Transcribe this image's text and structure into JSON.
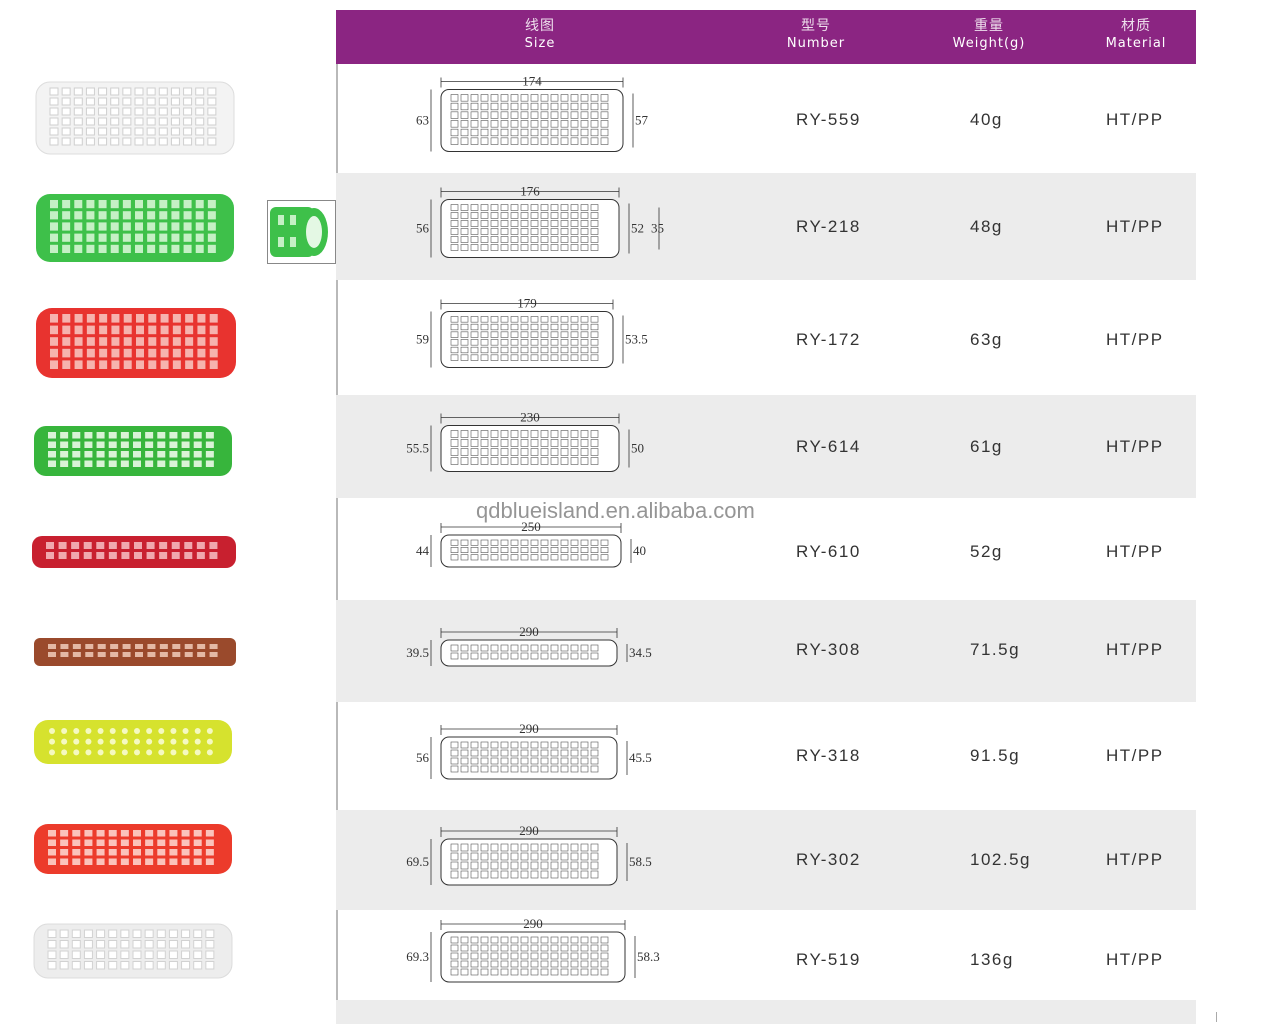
{
  "header": {
    "size_cn": "线图",
    "size_en": "Size",
    "number_cn": "型号",
    "number_en": "Number",
    "weight_cn": "重量",
    "weight_en": "Weight(g)",
    "material_cn": "材质",
    "material_en": "Material",
    "background_color": "#8b2582"
  },
  "watermark": "qdblueisland.en.alibaba.com",
  "rows": [
    {
      "number": "RY-559",
      "weight": "40g",
      "material": "HT/PP",
      "length": "174",
      "left_dia": "63",
      "right_dia": "57",
      "right_dia2": "",
      "color": "#f2f2f2"
    },
    {
      "number": "RY-218",
      "weight": "48g",
      "material": "HT/PP",
      "length": "176",
      "left_dia": "56",
      "right_dia": "52",
      "right_dia2": "35",
      "color": "#3ec04a"
    },
    {
      "number": "RY-172",
      "weight": "63g",
      "material": "HT/PP",
      "length": "179",
      "left_dia": "59",
      "right_dia": "53.5",
      "right_dia2": "",
      "color": "#e8332f"
    },
    {
      "number": "RY-614",
      "weight": "61g",
      "material": "HT/PP",
      "length": "230",
      "left_dia": "55.5",
      "right_dia": "50",
      "right_dia2": "",
      "color": "#37b53c"
    },
    {
      "number": "RY-610",
      "weight": "52g",
      "material": "HT/PP",
      "length": "250",
      "left_dia": "44",
      "right_dia": "40",
      "right_dia2": "",
      "color": "#c8202f"
    },
    {
      "number": "RY-308",
      "weight": "71.5g",
      "material": "HT/PP",
      "length": "290",
      "left_dia": "39.5",
      "right_dia": "34.5",
      "right_dia2": "",
      "color": "#9a4a2c"
    },
    {
      "number": "RY-318",
      "weight": "91.5g",
      "material": "HT/PP",
      "length": "290",
      "left_dia": "56",
      "right_dia": "45.5",
      "right_dia2": "",
      "color": "#d6e22e"
    },
    {
      "number": "RY-302",
      "weight": "102.5g",
      "material": "HT/PP",
      "length": "290",
      "left_dia": "69.5",
      "right_dia": "58.5",
      "right_dia2": "",
      "color": "#ec3b2b"
    },
    {
      "number": "RY-519",
      "weight": "136g",
      "material": "HT/PP",
      "length": "290",
      "left_dia": "69.3",
      "right_dia": "58.3",
      "right_dia2": "",
      "color": "#ededed"
    }
  ]
}
